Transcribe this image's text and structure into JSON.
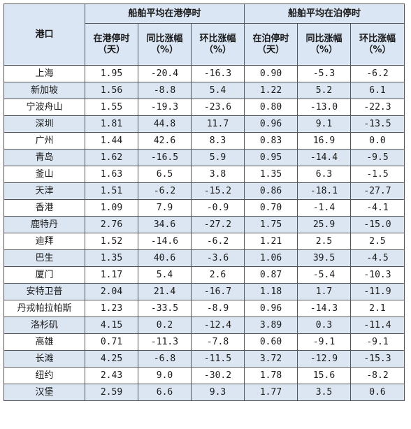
{
  "table": {
    "port_header": "港口",
    "groups": [
      {
        "title": "船舶平均在港停时",
        "columns": [
          {
            "line1": "在港停时",
            "line2": "（天）"
          },
          {
            "line1": "同比涨幅",
            "line2": "（%）"
          },
          {
            "line1": "环比涨幅",
            "line2": "（%）"
          }
        ]
      },
      {
        "title": "船舶平均在泊停时",
        "columns": [
          {
            "line1": "在泊停时",
            "line2": "（天）"
          },
          {
            "line1": "同比涨幅",
            "line2": "（%）"
          },
          {
            "line1": "环比涨幅",
            "line2": "（%）"
          }
        ]
      }
    ],
    "rows": [
      {
        "port": "上海",
        "values": [
          "1.95",
          "-20.4",
          "-16.3",
          "0.90",
          "-5.3",
          "-6.2"
        ]
      },
      {
        "port": "新加坡",
        "values": [
          "1.56",
          "-8.8",
          "5.4",
          "1.22",
          "5.2",
          "6.1"
        ]
      },
      {
        "port": "宁波舟山",
        "values": [
          "1.55",
          "-19.3",
          "-23.6",
          "0.80",
          "-13.0",
          "-22.3"
        ]
      },
      {
        "port": "深圳",
        "values": [
          "1.81",
          "44.8",
          "11.7",
          "0.96",
          "9.1",
          "-13.5"
        ]
      },
      {
        "port": "广州",
        "values": [
          "1.44",
          "42.6",
          "8.3",
          "0.83",
          "16.9",
          "0.0"
        ]
      },
      {
        "port": "青岛",
        "values": [
          "1.62",
          "-16.5",
          "5.9",
          "0.95",
          "-14.4",
          "-9.5"
        ]
      },
      {
        "port": "釜山",
        "values": [
          "1.63",
          "6.5",
          "3.8",
          "1.35",
          "6.3",
          "-1.5"
        ]
      },
      {
        "port": "天津",
        "values": [
          "1.51",
          "-6.2",
          "-15.2",
          "0.86",
          "-18.1",
          "-27.7"
        ]
      },
      {
        "port": "香港",
        "values": [
          "1.09",
          "7.9",
          "-0.9",
          "0.70",
          "-1.4",
          "-4.1"
        ]
      },
      {
        "port": "鹿特丹",
        "values": [
          "2.76",
          "34.6",
          "-27.2",
          "1.75",
          "25.9",
          "-15.0"
        ]
      },
      {
        "port": "迪拜",
        "values": [
          "1.52",
          "-14.6",
          "-6.2",
          "1.21",
          "2.5",
          "2.5"
        ]
      },
      {
        "port": "巴生",
        "values": [
          "1.35",
          "40.6",
          "-3.6",
          "1.06",
          "39.5",
          "-4.5"
        ]
      },
      {
        "port": "厦门",
        "values": [
          "1.17",
          "5.4",
          "2.6",
          "0.87",
          "-5.4",
          "-10.3"
        ]
      },
      {
        "port": "安特卫普",
        "values": [
          "2.04",
          "21.4",
          "-16.7",
          "1.18",
          "1.7",
          "-11.9"
        ]
      },
      {
        "port": "丹戎帕拉帕斯",
        "values": [
          "1.23",
          "-33.5",
          "-8.9",
          "0.96",
          "-14.3",
          "2.1"
        ]
      },
      {
        "port": "洛杉矶",
        "values": [
          "4.15",
          "0.2",
          "-12.4",
          "3.89",
          "0.3",
          "-11.4"
        ]
      },
      {
        "port": "高雄",
        "values": [
          "0.71",
          "-11.3",
          "-7.8",
          "0.60",
          "-9.1",
          "-9.1"
        ]
      },
      {
        "port": "长滩",
        "values": [
          "4.25",
          "-6.8",
          "-11.5",
          "3.72",
          "-12.9",
          "-15.3"
        ]
      },
      {
        "port": "纽约",
        "values": [
          "2.43",
          "9.0",
          "-30.2",
          "1.78",
          "15.6",
          "-8.2"
        ]
      },
      {
        "port": "汉堡",
        "values": [
          "2.59",
          "6.6",
          "9.3",
          "1.77",
          "3.5",
          "0.6"
        ]
      }
    ]
  },
  "colors": {
    "header_bg": "#dbe6f4",
    "alt_row_bg": "#dce6f2",
    "border": "#555555",
    "text": "#1a1a1a"
  }
}
